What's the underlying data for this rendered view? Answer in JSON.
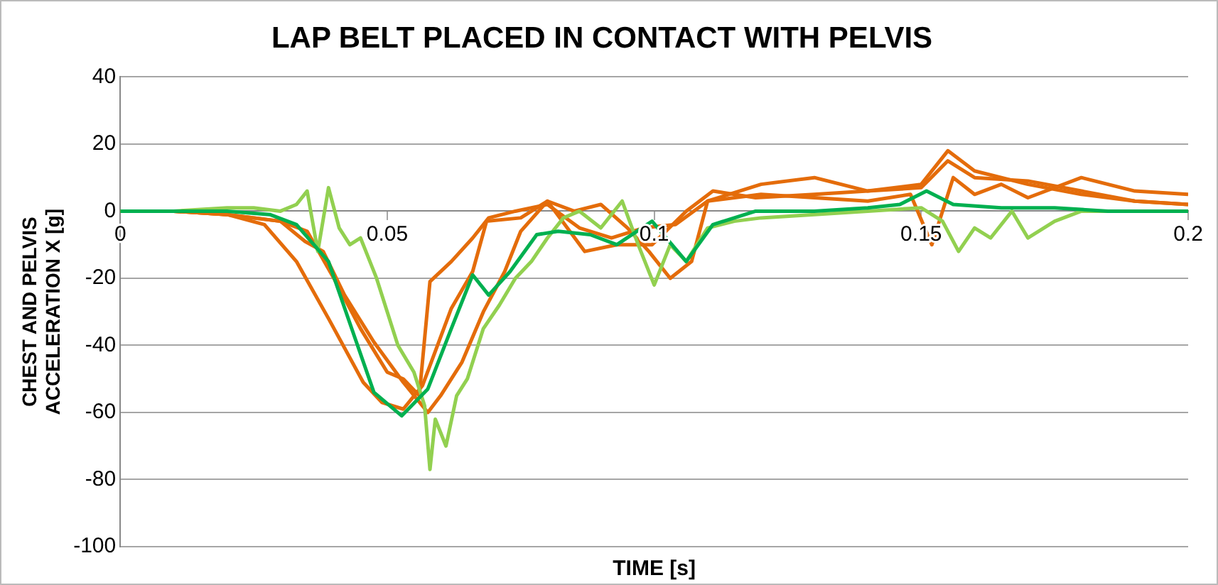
{
  "chart_data": {
    "type": "line",
    "title": "LAP BELT PLACED IN CONTACT WITH PELVIS",
    "xlabel": "TIME [s]",
    "ylabel": "CHEST AND PELVIS\nACCELERATION X [g]",
    "xlim": [
      0,
      0.2
    ],
    "xticks": [
      0,
      0.05,
      0.1,
      0.15,
      0.2
    ],
    "ylim": [
      -100,
      40
    ],
    "yticks": [
      -100,
      -80,
      -60,
      -40,
      -20,
      0,
      20,
      40
    ],
    "grid": "y",
    "legend": false,
    "marker": "none",
    "line_style": "solid",
    "series": [
      {
        "color": "#00b050",
        "x": [
          0,
          0.01,
          0.02,
          0.028,
          0.033,
          0.039,
          0.044,
          0.0475,
          0.0527,
          0.0576,
          0.062,
          0.066,
          0.069,
          0.073,
          0.078,
          0.082,
          0.088,
          0.093,
          0.0996,
          0.106,
          0.111,
          0.119,
          0.13,
          0.14,
          0.146,
          0.151,
          0.156,
          0.165,
          0.175,
          0.185,
          0.2
        ],
        "values": [
          0,
          0,
          0,
          -1,
          -4,
          -15,
          -38,
          -54,
          -61,
          -53,
          -35,
          -19,
          -25,
          -18,
          -7,
          -6,
          -7,
          -10,
          -3,
          -15,
          -4,
          0,
          0,
          1,
          2,
          6,
          2,
          1,
          1,
          0,
          0
        ]
      },
      {
        "color": "#92d050",
        "x": [
          0,
          0.01,
          0.02,
          0.025,
          0.03,
          0.033,
          0.035,
          0.037,
          0.039,
          0.041,
          0.043,
          0.045,
          0.048,
          0.05,
          0.052,
          0.055,
          0.057,
          0.058,
          0.059,
          0.061,
          0.063,
          0.065,
          0.068,
          0.071,
          0.074,
          0.077,
          0.08,
          0.083,
          0.086,
          0.09,
          0.094,
          0.097,
          0.1,
          0.103,
          0.106,
          0.11,
          0.115,
          0.12,
          0.13,
          0.14,
          0.15,
          0.154,
          0.157,
          0.16,
          0.163,
          0.167,
          0.17,
          0.175,
          0.18,
          0.19,
          0.2
        ],
        "values": [
          0,
          0,
          1,
          1,
          0,
          2,
          6,
          -12,
          7,
          -5,
          -10,
          -8,
          -20,
          -30,
          -40,
          -48,
          -58,
          -77,
          -62,
          -70,
          -55,
          -50,
          -35,
          -28,
          -20,
          -15,
          -8,
          -2,
          0,
          -5,
          3,
          -10,
          -22,
          -10,
          -15,
          -5,
          -3,
          -2,
          -1,
          0,
          1,
          -3,
          -12,
          -5,
          -8,
          0,
          -8,
          -3,
          0,
          0,
          0
        ]
      },
      {
        "color": "#e46c0a",
        "x": [
          0,
          0.01,
          0.02,
          0.027,
          0.033,
          0.039,
          0.0455,
          0.049,
          0.053,
          0.0566,
          0.062,
          0.066,
          0.0686,
          0.075,
          0.08,
          0.087,
          0.093,
          0.0996,
          0.106,
          0.111,
          0.119,
          0.13,
          0.14,
          0.15,
          0.155,
          0.16,
          0.17,
          0.18,
          0.19,
          0.2
        ],
        "values": [
          0,
          0,
          -1,
          -4,
          -15,
          -32,
          -51,
          -57,
          -59,
          -52,
          -29,
          -18,
          -3,
          -2,
          3,
          -12,
          -10,
          -10,
          0,
          6,
          4,
          5,
          6,
          8,
          18,
          12,
          8,
          5,
          3,
          2
        ]
      },
      {
        "color": "#e46c0a",
        "x": [
          0,
          0.01,
          0.02,
          0.03,
          0.0346,
          0.038,
          0.042,
          0.0475,
          0.053,
          0.0576,
          0.06,
          0.064,
          0.068,
          0.072,
          0.075,
          0.08,
          0.085,
          0.09,
          0.095,
          0.099,
          0.103,
          0.107,
          0.11,
          0.12,
          0.13,
          0.14,
          0.148,
          0.152,
          0.156,
          0.16,
          0.165,
          0.17,
          0.18,
          0.19,
          0.2
        ],
        "values": [
          0,
          0,
          -1,
          -3,
          -9,
          -12,
          -25,
          -39,
          -51,
          -60,
          -55,
          -45,
          -30,
          -18,
          -6,
          3,
          0,
          2,
          -5,
          -12,
          -20,
          -15,
          3,
          5,
          4,
          3,
          5,
          -10,
          10,
          5,
          8,
          4,
          10,
          6,
          5
        ]
      },
      {
        "color": "#e46c0a",
        "x": [
          0,
          0.01,
          0.02,
          0.03,
          0.035,
          0.04,
          0.045,
          0.05,
          0.053,
          0.056,
          0.058,
          0.062,
          0.066,
          0.069,
          0.074,
          0.08,
          0.086,
          0.092,
          0.098,
          0.104,
          0.11,
          0.12,
          0.13,
          0.14,
          0.15,
          0.155,
          0.16,
          0.17,
          0.18,
          0.19,
          0.2
        ],
        "values": [
          0,
          0,
          -1,
          -3,
          -6,
          -20,
          -35,
          -48,
          -50,
          -55,
          -21,
          -15,
          -8,
          -2,
          0,
          2,
          -5,
          -8,
          -5,
          -4,
          3,
          8,
          10,
          6,
          7,
          15,
          10,
          9,
          6,
          3,
          2
        ]
      }
    ]
  }
}
